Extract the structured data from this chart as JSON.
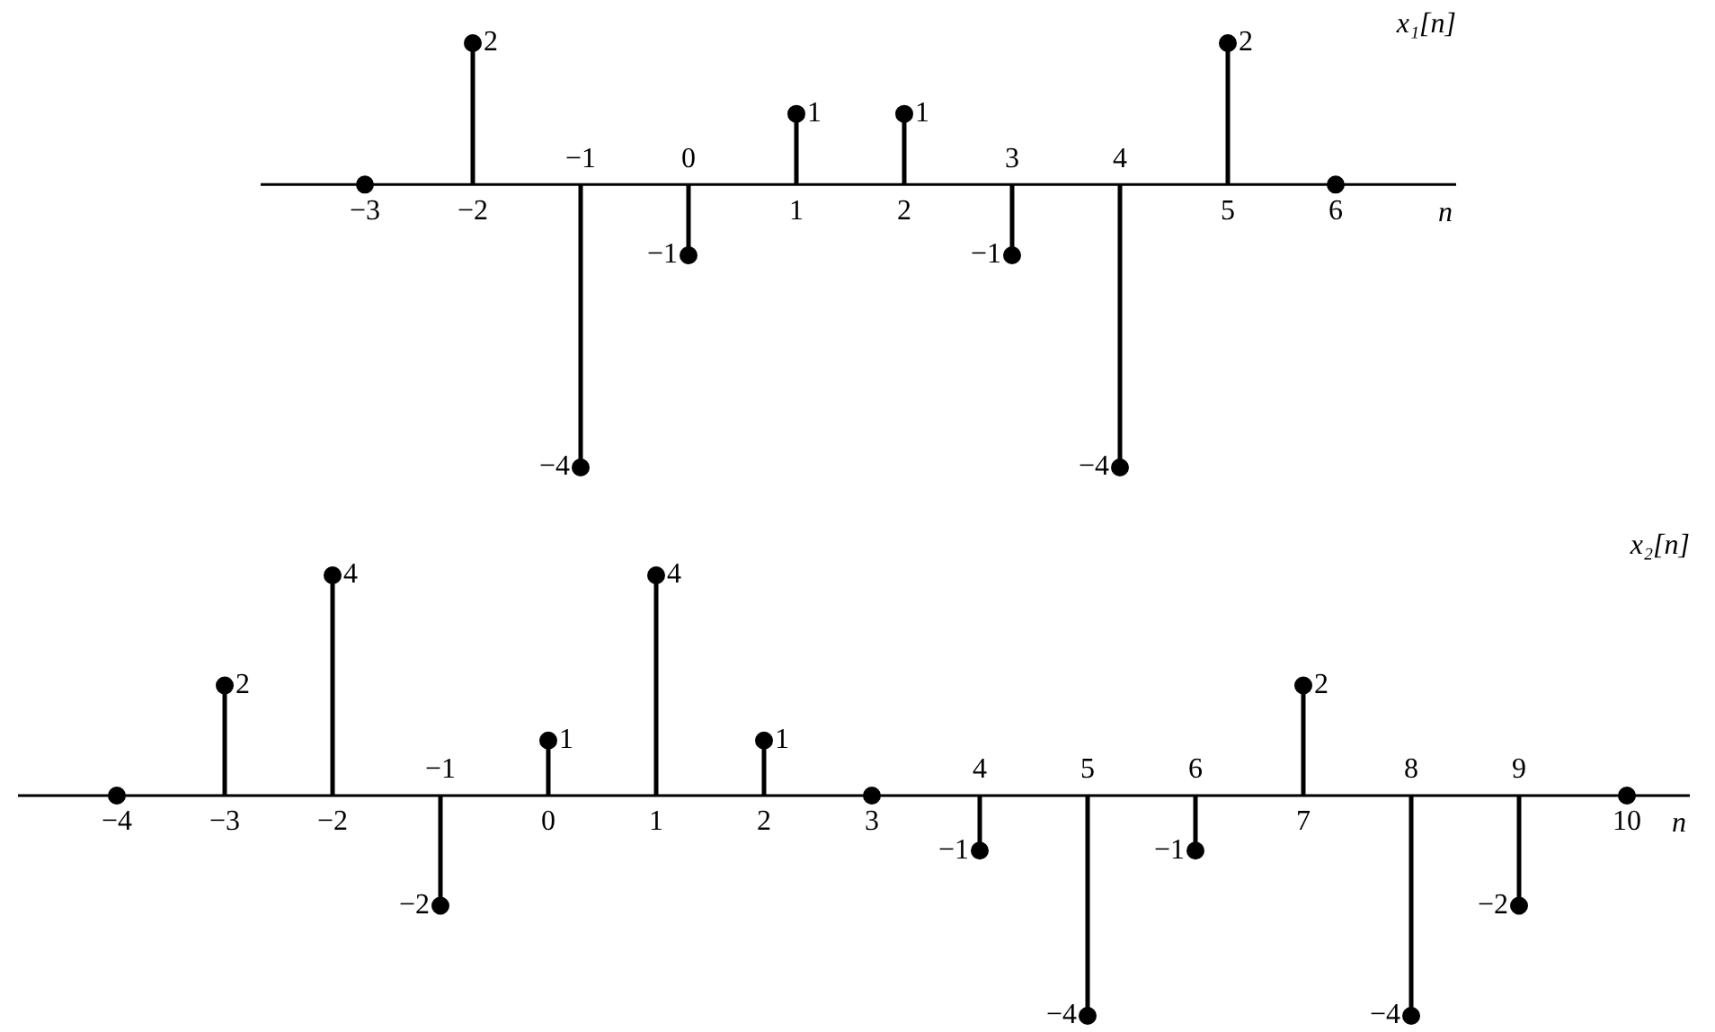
{
  "chart_data": [
    {
      "type": "lollipop",
      "title": "x₁[n]",
      "xlabel": "n",
      "categories": [
        "−3",
        "−2",
        "−1",
        "0",
        "1",
        "2",
        "3",
        "4",
        "5",
        "6"
      ],
      "values": [
        0,
        2,
        -4,
        -1,
        1,
        1,
        -1,
        -4,
        2,
        0
      ],
      "value_labels": [
        null,
        "2",
        "−4",
        "−1",
        "1",
        "1",
        "−1",
        "−4",
        "2",
        null
      ],
      "color": "#000000",
      "marker": "circle"
    },
    {
      "type": "lollipop",
      "title": "x₂[n]",
      "xlabel": "n",
      "categories": [
        "−4",
        "−3",
        "−2",
        "−1",
        "0",
        "1",
        "2",
        "3",
        "4",
        "5",
        "6",
        "7",
        "8",
        "9",
        "10"
      ],
      "values": [
        0,
        2,
        4,
        -2,
        1,
        4,
        1,
        0,
        -1,
        -4,
        -1,
        2,
        -4,
        -2,
        0
      ],
      "value_labels": [
        null,
        "2",
        "4",
        "−2",
        "1",
        "4",
        "1",
        null,
        "−1",
        "−4",
        "−1",
        "2",
        "−4",
        "−2",
        null
      ],
      "color": "#000000",
      "marker": "circle"
    }
  ]
}
